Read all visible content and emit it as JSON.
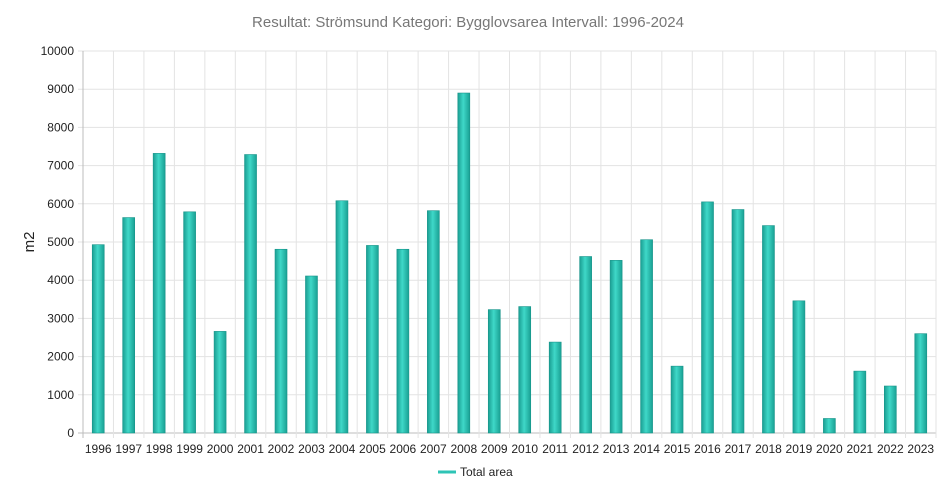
{
  "chart_data": {
    "type": "bar",
    "title": "Resultat: Strömsund Kategori: Bygglovsarea Intervall: 1996-2024",
    "xlabel": "",
    "ylabel": "m2",
    "categories": [
      "1996",
      "1997",
      "1998",
      "1999",
      "2000",
      "2001",
      "2002",
      "2003",
      "2004",
      "2005",
      "2006",
      "2007",
      "2008",
      "2009",
      "2010",
      "2011",
      "2012",
      "2013",
      "2014",
      "2015",
      "2016",
      "2017",
      "2018",
      "2019",
      "2020",
      "2021",
      "2022",
      "2023"
    ],
    "series": [
      {
        "name": "Total area",
        "color": "#2ec4b6",
        "values": [
          4930,
          5640,
          7320,
          5790,
          2660,
          7290,
          4810,
          4110,
          6080,
          4910,
          4810,
          5820,
          8900,
          3230,
          3310,
          2380,
          4620,
          4520,
          5060,
          1750,
          6050,
          5850,
          5430,
          3460,
          380,
          1620,
          1230,
          2600
        ]
      }
    ],
    "ylim": [
      0,
      10000
    ],
    "yticks": [
      "0",
      "1000",
      "2000",
      "3000",
      "4000",
      "5000",
      "6000",
      "7000",
      "8000",
      "9000",
      "10000"
    ],
    "grid": true,
    "legend_position": "bottom-center"
  }
}
